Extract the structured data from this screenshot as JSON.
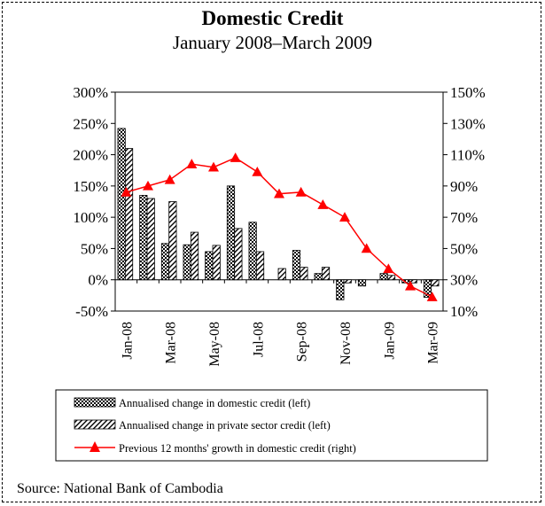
{
  "chart_data": {
    "type": "bar",
    "title": "Domestic Credit",
    "subtitle": "January 2008–March 2009",
    "categories": [
      "Jan-08",
      "Feb-08",
      "Mar-08",
      "Apr-08",
      "May-08",
      "Jun-08",
      "Jul-08",
      "Aug-08",
      "Sep-08",
      "Oct-08",
      "Nov-08",
      "Dec-08",
      "Jan-09",
      "Feb-09",
      "Mar-09"
    ],
    "x_tick_labels": [
      "Jan-08",
      "Mar-08",
      "May-08",
      "Jul-08",
      "Sep-08",
      "Nov-08",
      "Jan-09",
      "Mar-09"
    ],
    "left_axis": {
      "ticks": [
        "300%",
        "250%",
        "200%",
        "150%",
        "100%",
        "50%",
        "0%",
        "-50%"
      ],
      "ylim": [
        -50,
        300
      ]
    },
    "right_axis": {
      "ticks": [
        "150%",
        "130%",
        "110%",
        "90%",
        "70%",
        "50%",
        "30%",
        "10%"
      ],
      "ylim": [
        10,
        150
      ]
    },
    "series": [
      {
        "name": "Annualised change in domestic credit (left)",
        "type": "bar",
        "axis": "left",
        "values": [
          242,
          135,
          58,
          56,
          45,
          150,
          92,
          0,
          47,
          10,
          -32,
          -10,
          10,
          -5,
          -28
        ]
      },
      {
        "name": "Annualised change in private sector credit (left)",
        "type": "bar",
        "axis": "left",
        "values": [
          210,
          130,
          125,
          76,
          55,
          82,
          45,
          18,
          20,
          20,
          -5,
          0,
          7,
          -5,
          -10
        ]
      },
      {
        "name": "Previous 12 months' growth in domestic credit (right)",
        "type": "line",
        "axis": "right",
        "color": "#ff0000",
        "values": [
          86,
          90,
          94,
          104,
          102,
          108,
          99,
          85,
          86,
          78,
          70,
          50,
          37,
          26,
          19
        ]
      }
    ],
    "grid": false,
    "legend_position": "bottom"
  },
  "legend_labels": [
    "Annualised change in domestic credit (left)",
    "Annualised change in private sector credit (left)",
    "Previous 12 months' growth in domestic credit (right)"
  ],
  "source": "Source: National Bank of Cambodia"
}
